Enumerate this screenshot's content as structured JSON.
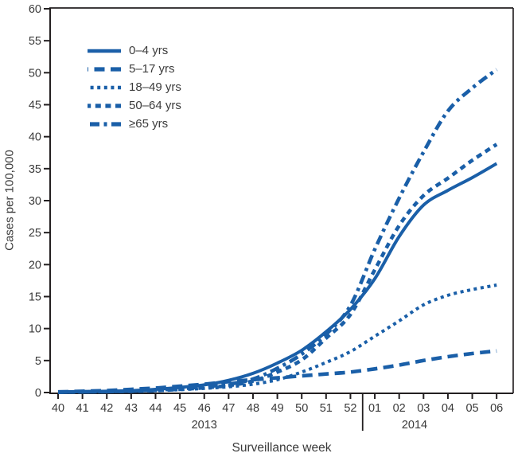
{
  "chart_data": {
    "type": "line",
    "title": "",
    "xlabel": "Surveillance week",
    "ylabel": "Cases per 100,000",
    "ylim": [
      0,
      60
    ],
    "y_ticks": [
      0,
      5,
      10,
      15,
      20,
      25,
      30,
      35,
      40,
      45,
      50,
      55,
      60
    ],
    "categories": [
      "40",
      "41",
      "42",
      "43",
      "44",
      "45",
      "46",
      "47",
      "48",
      "49",
      "50",
      "51",
      "52",
      "01",
      "02",
      "03",
      "04",
      "05",
      "06"
    ],
    "year_labels": [
      {
        "text": "2013",
        "under_weeks": "40-52"
      },
      {
        "text": "2014",
        "under_weeks": "01-06"
      }
    ],
    "year_separator_after_index": 12,
    "grid": false,
    "legend_position": "top-left-inside",
    "line_color": "#1a5fa8",
    "axis_color": "#231f20",
    "text_color": "#3a3a3a",
    "series": [
      {
        "name": "0–4 yrs",
        "line_style": "solid",
        "values": [
          0.1,
          0.15,
          0.2,
          0.3,
          0.5,
          0.8,
          1.2,
          1.9,
          3.0,
          4.6,
          6.6,
          9.5,
          13.0,
          17.8,
          24.4,
          29.3,
          31.6,
          33.6,
          35.8
        ]
      },
      {
        "name": "5–17 yrs",
        "line_style": "long-dash",
        "values": [
          0.1,
          0.2,
          0.3,
          0.5,
          0.7,
          1.0,
          1.3,
          1.7,
          2.0,
          2.3,
          2.6,
          2.9,
          3.2,
          3.7,
          4.3,
          5.0,
          5.6,
          6.1,
          6.5
        ]
      },
      {
        "name": "18–49 yrs",
        "line_style": "dotted",
        "values": [
          0.05,
          0.1,
          0.15,
          0.2,
          0.3,
          0.45,
          0.65,
          0.9,
          1.3,
          2.0,
          3.2,
          4.7,
          6.4,
          8.8,
          11.2,
          13.7,
          15.2,
          16.1,
          16.8
        ]
      },
      {
        "name": "50–64 yrs",
        "line_style": "medium-dash",
        "values": [
          0.05,
          0.1,
          0.15,
          0.2,
          0.3,
          0.5,
          0.75,
          1.1,
          1.8,
          3.2,
          5.1,
          8.5,
          12.2,
          19.2,
          26.1,
          30.8,
          33.5,
          36.3,
          38.8
        ]
      },
      {
        "name": "≥65 yrs",
        "line_style": "dash-dot",
        "values": [
          0.05,
          0.1,
          0.15,
          0.25,
          0.4,
          0.6,
          0.9,
          1.3,
          2.1,
          3.8,
          6.0,
          9.1,
          13.6,
          22.4,
          30.4,
          37.6,
          44.0,
          47.6,
          50.5
        ]
      }
    ]
  }
}
